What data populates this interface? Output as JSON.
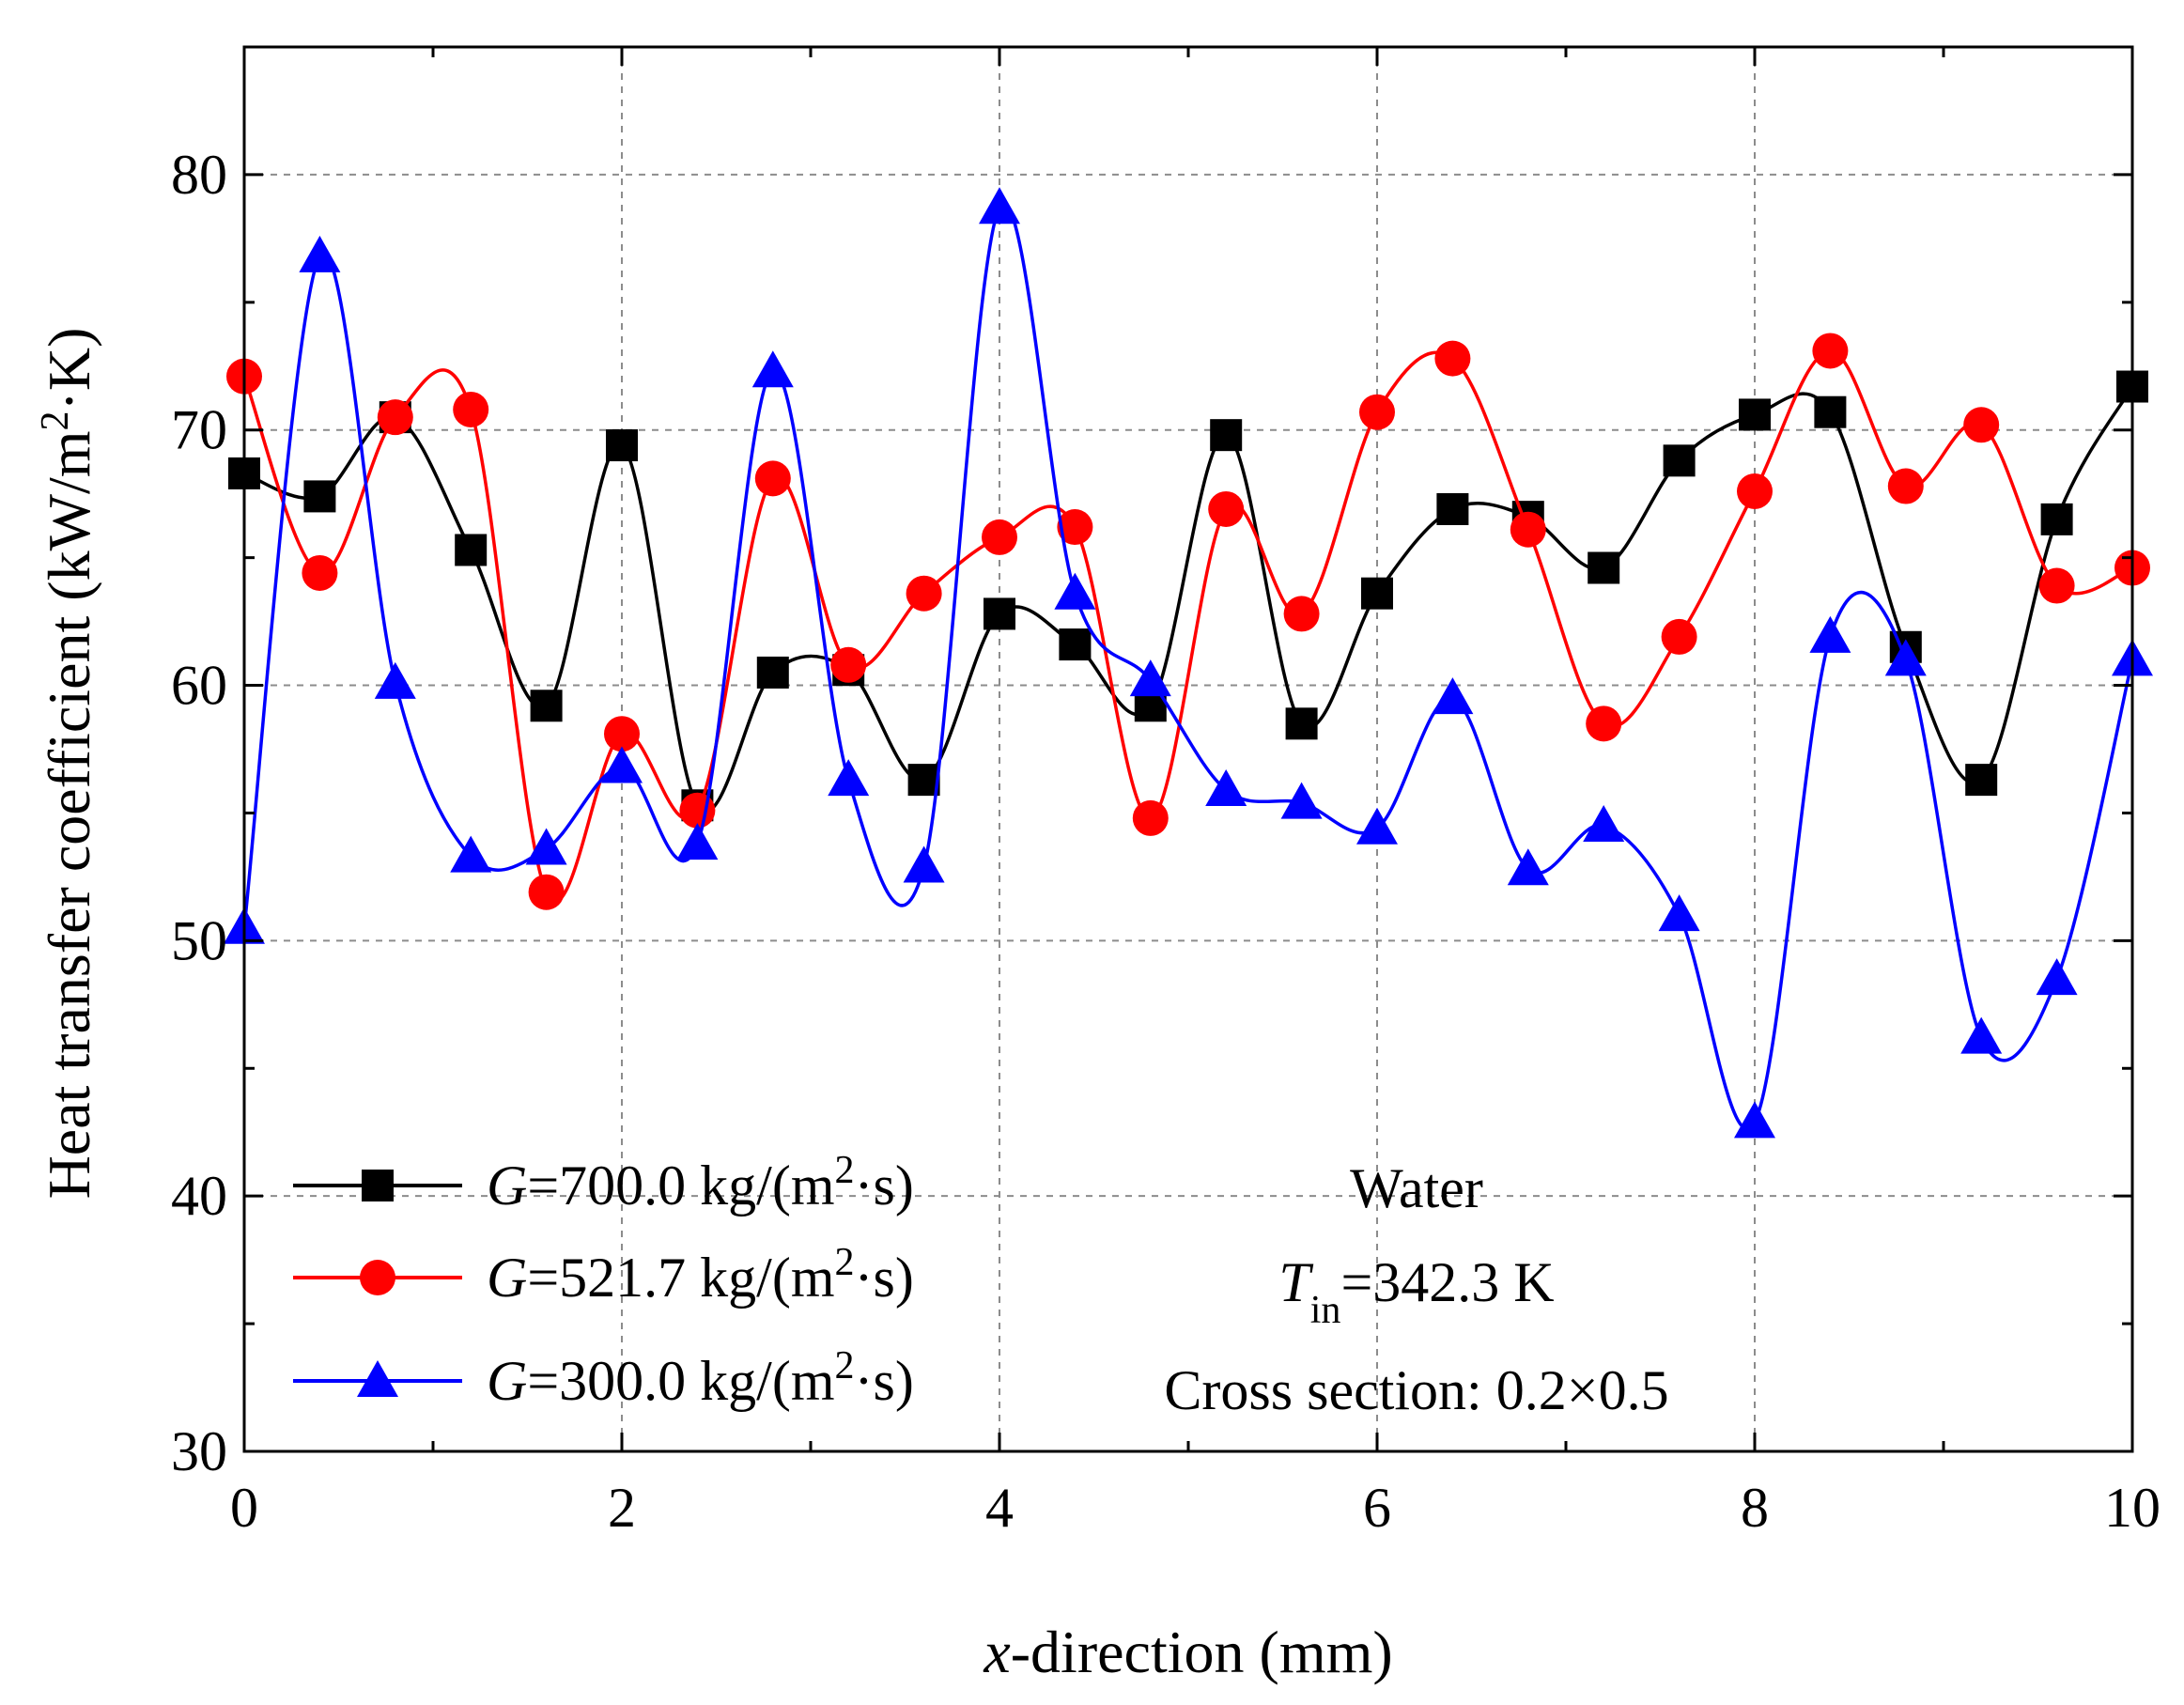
{
  "chart_data": {
    "type": "line",
    "title": "",
    "xlabel": {
      "italic": "x",
      "rest": "-direction (mm)"
    },
    "ylabel": {
      "text": "Heat transfer coefficient (kW/m",
      "sup": "2",
      "tail": "·K)"
    },
    "xlim": [
      0,
      10
    ],
    "ylim": [
      30,
      85
    ],
    "x_ticks": [
      0,
      2,
      4,
      6,
      8,
      10
    ],
    "x_tick_labels": [
      "0",
      "2",
      "4",
      "6",
      "8",
      "10"
    ],
    "y_ticks": [
      30,
      40,
      50,
      60,
      70,
      80
    ],
    "y_tick_labels": [
      "30",
      "40",
      "50",
      "60",
      "70",
      "80"
    ],
    "grid": true,
    "legend_position": "bottom-left",
    "x": [
      0,
      0.4,
      0.8,
      1.2,
      1.6,
      2.0,
      2.4,
      2.8,
      3.2,
      3.6,
      4.0,
      4.4,
      4.8,
      5.2,
      5.6,
      6.0,
      6.4,
      6.8,
      7.2,
      7.6,
      8.0,
      8.4,
      8.8,
      9.2,
      9.6,
      10.0
    ],
    "series": [
      {
        "name": "G=700.0 kg/(m2·s)",
        "label_italic": "G",
        "label_prefix": "=700.0 kg/(m",
        "label_sup": "2",
        "label_suffix": "·s)",
        "color": "#000000",
        "marker": "square",
        "values": [
          68.3,
          67.4,
          70.5,
          65.3,
          59.2,
          69.4,
          55.3,
          60.5,
          60.6,
          56.3,
          62.8,
          61.6,
          59.2,
          69.8,
          58.5,
          63.6,
          66.9,
          66.6,
          64.6,
          68.8,
          70.6,
          70.7,
          61.5,
          56.3,
          66.5,
          71.7
        ]
      },
      {
        "name": "G=521.7 kg/(m2·s)",
        "label_italic": "G",
        "label_prefix": "=521.7 kg/(m",
        "label_sup": "2",
        "label_suffix": "·s)",
        "color": "#ff0000",
        "marker": "circle",
        "values": [
          72.1,
          64.4,
          70.5,
          70.8,
          51.9,
          58.1,
          55.1,
          68.1,
          60.8,
          63.6,
          65.8,
          66.2,
          54.8,
          66.9,
          62.8,
          70.7,
          72.8,
          66.1,
          58.5,
          61.9,
          67.6,
          73.1,
          67.8,
          70.2,
          63.9,
          64.6
        ]
      },
      {
        "name": "G=300.0 kg/(m2·s)",
        "label_italic": "G",
        "label_prefix": "=300.0 kg/(m",
        "label_sup": "2",
        "label_suffix": "·s)",
        "color": "#0000ff",
        "marker": "triangle",
        "values": [
          50.5,
          76.8,
          60.1,
          53.3,
          53.6,
          56.8,
          53.8,
          72.3,
          56.3,
          52.9,
          78.7,
          63.6,
          60.2,
          55.9,
          55.4,
          54.4,
          59.5,
          52.8,
          54.5,
          51.0,
          42.9,
          61.9,
          61.0,
          46.2,
          48.5,
          61.0
        ]
      }
    ],
    "annotations": {
      "fluid": "Water",
      "tin_symbol": "T",
      "tin_sub": "in",
      "tin_value": "=342.3 K",
      "cross_section": "Cross section: 0.2×0.5"
    }
  }
}
